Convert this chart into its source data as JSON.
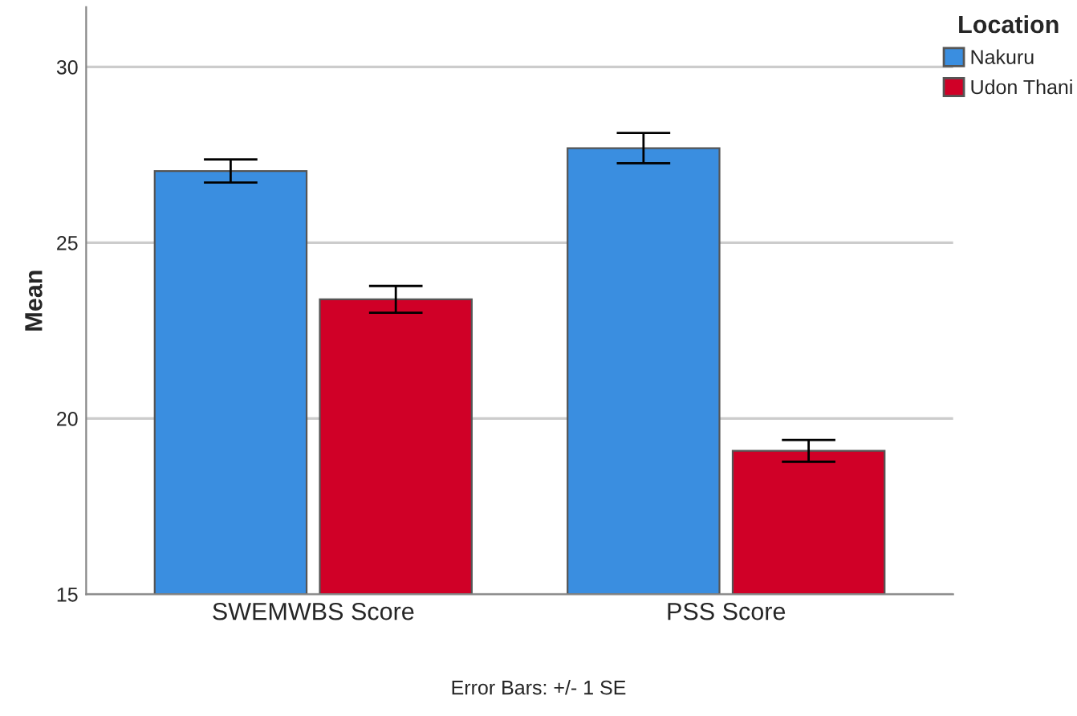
{
  "chart_data": {
    "type": "bar",
    "ylabel": "Mean",
    "legend_title": "Location",
    "categories": [
      "SWEMWBS Score",
      "PSS Score"
    ],
    "series": [
      {
        "name": "Nakuru",
        "color": "#3a8ee0",
        "values": [
          27.04,
          27.69
        ],
        "errors": [
          0.33,
          0.43
        ]
      },
      {
        "name": "Udon Thani",
        "color": "#d00027",
        "values": [
          23.39,
          19.08
        ],
        "errors": [
          0.38,
          0.31
        ]
      }
    ],
    "ylim": [
      15,
      31.7
    ],
    "yticks": [
      15,
      20,
      25,
      30
    ],
    "grid": "y",
    "legend": "top right",
    "annotations": [
      "Error Bars: +/- 1 SE"
    ]
  }
}
